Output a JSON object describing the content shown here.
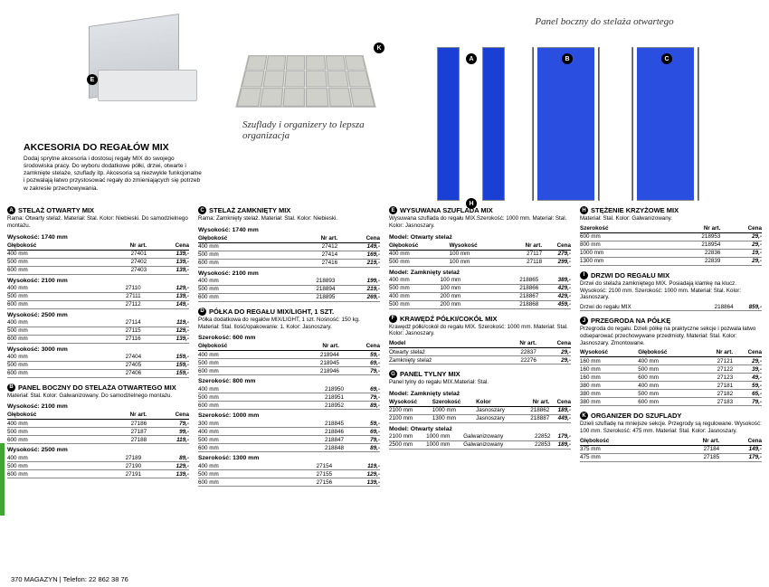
{
  "scriptDrawer": "Szuflady i organizery to lepsza organizacja",
  "scriptPanel": "Panel boczny do stelaża otwartego",
  "title": "AKCESORIA DO REGAŁÓW MIX",
  "intro": "Dodaj sprytne akcesoria i dostosuj regały MIX do swojego środowiska pracy. Do wyboru dodatkowe półki, drzwi, otwarte i zamknięte stelaże, szuflady itp. Akcesoria są niezwykle funkcjonalne i pozwalają łatwo przystosować regały do zmieniających się potrzeb w zakresie przechowywania.",
  "footer": "370  MAGAZYN | Telefon: 22 862 38 76",
  "markers": {
    "E": "E",
    "K": "K",
    "A": "A",
    "B": "B",
    "C": "C",
    "H": "H"
  },
  "hdr": {
    "gleb": "Głębokość",
    "szer": "Szerokość",
    "model": "Model",
    "kolor": "Kolor",
    "wys": "Wysokość",
    "art": "Nr art.",
    "cena": "Cena"
  },
  "c1": {
    "s1": {
      "title": "STELAŻ OTWARTY MIX",
      "desc": "Rama: Otwarty stelaż. Materiał: Stal. Kolor: Niebieski. Do samodzielnego montażu.",
      "g": [
        {
          "h": "Wysokość: 1740 mm",
          "rows": [
            [
              "400 mm",
              "27401",
              "139,-"
            ],
            [
              "500 mm",
              "27402",
              "139,-"
            ],
            [
              "600 mm",
              "27403",
              "139,-"
            ]
          ]
        },
        {
          "h": "Wysokość: 2100 mm",
          "rows": [
            [
              "400 mm",
              "27110",
              "129,-"
            ],
            [
              "500 mm",
              "27111",
              "139,-"
            ],
            [
              "600 mm",
              "27112",
              "149,-"
            ]
          ]
        },
        {
          "h": "Wysokość: 2500 mm",
          "rows": [
            [
              "400 mm",
              "27114",
              "119,-"
            ],
            [
              "500 mm",
              "27115",
              "129,-"
            ],
            [
              "600 mm",
              "27116",
              "139,-"
            ]
          ]
        },
        {
          "h": "Wysokość: 3000 mm",
          "rows": [
            [
              "400 mm",
              "27404",
              "159,-"
            ],
            [
              "500 mm",
              "27405",
              "159,-"
            ],
            [
              "600 mm",
              "27406",
              "159,-"
            ]
          ]
        }
      ]
    },
    "s2": {
      "title": "PANEL BOCZNY DO STELAŻA OTWARTEGO MIX",
      "desc": "Materiał: Stal. Kolor: Galwanizowany. Do samodzielnego montażu.",
      "g": [
        {
          "h": "Wysokość: 2100 mm",
          "rows": [
            [
              "400 mm",
              "27186",
              "79,-"
            ],
            [
              "500 mm",
              "27187",
              "99,-"
            ],
            [
              "600 mm",
              "27188",
              "119,-"
            ]
          ]
        },
        {
          "h": "Wysokość: 2500 mm",
          "rows": [
            [
              "400 mm",
              "27189",
              "89,-"
            ],
            [
              "500 mm",
              "27190",
              "129,-"
            ],
            [
              "600 mm",
              "27191",
              "139,-"
            ]
          ]
        }
      ]
    }
  },
  "c2": {
    "s1": {
      "title": "STELAŻ ZAMKNIĘTY MIX",
      "desc": "Rama: Zamknięty stelaż. Materiał: Stal. Kolor: Niebieski.",
      "g": [
        {
          "h": "Wysokość: 1740 mm",
          "rows": [
            [
              "400 mm",
              "27412",
              "149,-"
            ],
            [
              "500 mm",
              "27414",
              "169,-"
            ],
            [
              "600 mm",
              "27416",
              "219,-"
            ]
          ]
        },
        {
          "h": "Wysokość: 2100 mm",
          "rows": [
            [
              "400 mm",
              "218893",
              "199,-"
            ],
            [
              "500 mm",
              "218894",
              "219,-"
            ],
            [
              "600 mm",
              "218895",
              "269,-"
            ]
          ]
        }
      ]
    },
    "s2": {
      "title": "PÓŁKA DO REGAŁU MIX/LIGHT, 1 SZT.",
      "desc": "Półka dodatkowa do regałów MIX/LIGHT, 1 szt. Nośność: 150 kg. Materiał: Stal. Ilość/opakowanie: 1. Kolor: Jasnoszary.",
      "g": [
        {
          "h": "Szerokość: 600 mm",
          "rows": [
            [
              "400 mm",
              "218944",
              "59,-"
            ],
            [
              "500 mm",
              "218945",
              "69,-"
            ],
            [
              "600 mm",
              "218946",
              "79,-"
            ]
          ]
        },
        {
          "h": "Szerokość: 800 mm",
          "rows": [
            [
              "400 mm",
              "218950",
              "69,-"
            ],
            [
              "500 mm",
              "218951",
              "79,-"
            ],
            [
              "600 mm",
              "218952",
              "89,-"
            ]
          ]
        },
        {
          "h": "Szerokość: 1000 mm",
          "rows": [
            [
              "300 mm",
              "218845",
              "59,-"
            ],
            [
              "400 mm",
              "218846",
              "69,-"
            ],
            [
              "500 mm",
              "218847",
              "79,-"
            ],
            [
              "600 mm",
              "218848",
              "89,-"
            ]
          ]
        },
        {
          "h": "Szerokość: 1300 mm",
          "rows": [
            [
              "400 mm",
              "27154",
              "119,-"
            ],
            [
              "500 mm",
              "27155",
              "129,-"
            ],
            [
              "600 mm",
              "27156",
              "139,-"
            ]
          ]
        }
      ]
    }
  },
  "c3": {
    "s1": {
      "title": "WYSUWANA SZUFLADA MIX",
      "desc": "Wysuwana szuflada do regału MIX.Szerokość: 1000 mm. Materiał: Stal. Kolor: Jasnoszary.",
      "g1": {
        "h": "Model: Otwarty stelaż",
        "rows": [
          [
            "400 mm",
            "100 mm",
            "27117",
            "279,-"
          ],
          [
            "500 mm",
            "100 mm",
            "27118",
            "299,-"
          ]
        ]
      },
      "g2": {
        "h": "Model: Zamknięty stelaż",
        "rows": [
          [
            "400 mm",
            "100 mm",
            "218865",
            "389,-"
          ],
          [
            "500 mm",
            "100 mm",
            "218866",
            "429,-"
          ],
          [
            "400 mm",
            "200 mm",
            "218867",
            "429,-"
          ],
          [
            "500 mm",
            "200 mm",
            "218868",
            "459,-"
          ]
        ]
      }
    },
    "s2": {
      "title": "KRAWĘDŹ PÓŁKI/COKÓŁ MIX",
      "desc": "Krawędź półki/cokół do regału MIX. Szerokość: 1000 mm. Materiał: Stal. Kolor: Jasnoszary.",
      "rows": [
        [
          "Otwarty stelaż",
          "22837",
          "29,-"
        ],
        [
          "Zamknięty stelaż",
          "22276",
          "29,-"
        ]
      ]
    },
    "s3": {
      "title": "PANEL TYLNY MIX",
      "desc": "Panel tylny do regału MIX.Materiał: Stal.",
      "g1": {
        "h": "Model: Zamknięty stelaż",
        "rows": [
          [
            "2100 mm",
            "1000 mm",
            "Jasnoszary",
            "218862",
            "189,-"
          ],
          [
            "2100 mm",
            "1300 mm",
            "Jasnoszary",
            "218887",
            "449,-"
          ]
        ]
      },
      "g2": {
        "h": "Model: Otwarty stelaż",
        "rows": [
          [
            "2100 mm",
            "1000 mm",
            "Galwanizowany",
            "22852",
            "179,-"
          ],
          [
            "2500 mm",
            "1000 mm",
            "Galwanizowany",
            "22853",
            "189,-"
          ]
        ]
      }
    }
  },
  "c4": {
    "s1": {
      "title": "STĘŻENIE KRZYŻOWE MIX",
      "desc": " Materiał: Stal. Kolor: Galwanizowany.",
      "rows": [
        [
          "600 mm",
          "218953",
          "29,-"
        ],
        [
          "800 mm",
          "218954",
          "29,-"
        ],
        [
          "1000 mm",
          "22836",
          "19,-"
        ],
        [
          "1300 mm",
          "22839",
          "29,-"
        ]
      ]
    },
    "s2": {
      "title": "DRZWI DO REGAŁU MIX",
      "desc": "Drzwi do stelaża zamkniętego MIX. Posiadają klamkę na klucz. Wysokość: 2100 mm. Szerokość: 1000 mm. Materiał: Stal. Kolor: Jasnoszary.",
      "rows": [
        [
          "Drzwi do regału MIX",
          "218864",
          "859,-"
        ]
      ]
    },
    "s3": {
      "title": "PRZEGRODA NA PÓŁKĘ",
      "desc": "Przegroda do regału. Dzieli półkę na praktyczne sekcje i pozwala łatwo odseparować przechowywane przedmioty. Materiał: Stal. Kolor: Jasnoszary. Zmontowane.",
      "rows": [
        [
          "160 mm",
          "400 mm",
          "27121",
          "29,-"
        ],
        [
          "160 mm",
          "500 mm",
          "27122",
          "39,-"
        ],
        [
          "160 mm",
          "600 mm",
          "27123",
          "49,-"
        ],
        [
          "380 mm",
          "400 mm",
          "27181",
          "59,-"
        ],
        [
          "380 mm",
          "500 mm",
          "27182",
          "65,-"
        ],
        [
          "380 mm",
          "600 mm",
          "27183",
          "79,-"
        ]
      ]
    },
    "s4": {
      "title": "ORGANIZER DO SZUFLADY",
      "desc": "Dzieli szufladę na mniejsze sekcje. Przegrody są regulowane. Wysokość: 100 mm. Szerokość: 475 mm. Materiał: Stal. Kolor: Jasnoszary.",
      "rows": [
        [
          "375 mm",
          "27184",
          "149,-"
        ],
        [
          "475 mm",
          "27185",
          "179,-"
        ]
      ]
    }
  }
}
